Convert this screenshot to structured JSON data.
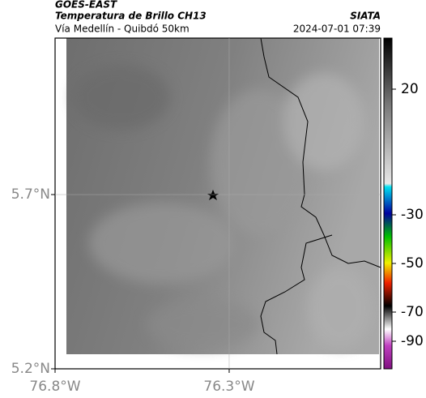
{
  "header": {
    "title": "GOES-EAST",
    "subtitle": "Temperatura de Brillo CH13",
    "route": "Vía Medellín - Quibdó 50km",
    "source": "SIATA",
    "timestamp": "2024-07-01 07:39"
  },
  "map": {
    "xlim": [
      -76.8,
      -75.865
    ],
    "ylim": [
      5.2,
      6.149
    ],
    "xticks": [
      {
        "value": -76.8,
        "label": "76.8°W"
      },
      {
        "value": -76.3,
        "label": "76.3°W"
      }
    ],
    "yticks": [
      {
        "value": 5.2,
        "label": "5.2°N"
      },
      {
        "value": 5.7,
        "label": "5.7°N"
      }
    ]
  },
  "colorbar": {
    "ticks": [
      20,
      -30,
      -50,
      -70,
      -90
    ]
  }
}
